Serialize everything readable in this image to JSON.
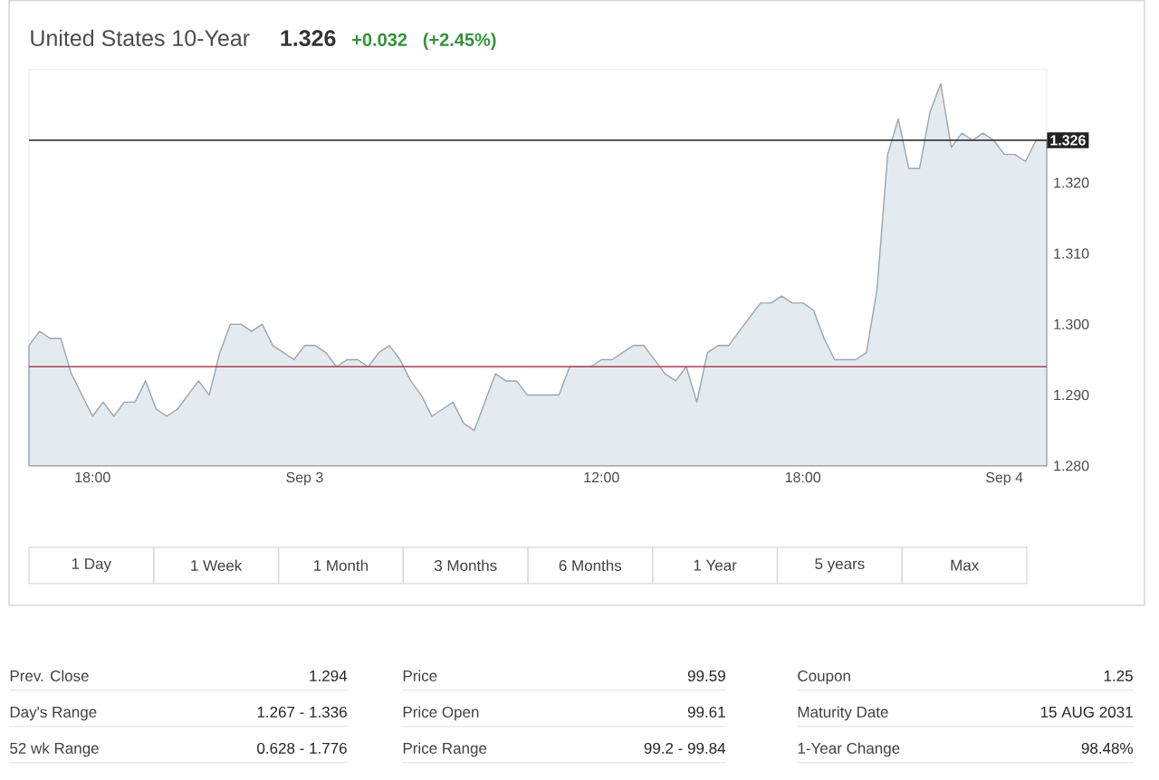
{
  "chart_data": {
    "type": "area",
    "title": "United States 10-Year",
    "annotations": [
      "1.326",
      "+0.032",
      "(+2.45%)",
      "1 Day",
      "1 Week",
      "1 Month",
      "3 Months",
      "6 Months",
      "1 Year",
      "5 years",
      "Max",
      "Prev. Close",
      "1.294",
      "Price",
      "99.59",
      "Coupon",
      "1.25",
      "Day's Range",
      "1.267 - 1.336",
      "Price Open",
      "99.61",
      "Maturity Date",
      "15 AUG 2031",
      "52 wk Range",
      "0.628 - 1.776",
      "Price Range",
      "99.2 - 99.84",
      "1-Year Change",
      "98.48%"
    ],
    "categories": [
      null,
      null,
      null,
      null,
      null,
      null,
      "18:00",
      null,
      null,
      null,
      null,
      null,
      null,
      null,
      null,
      null,
      null,
      null,
      null,
      null,
      null,
      null,
      null,
      null,
      null,
      null,
      "Sep 3",
      null,
      null,
      null,
      null,
      null,
      null,
      null,
      null,
      null,
      null,
      null,
      null,
      null,
      null,
      null,
      null,
      null,
      null,
      null,
      null,
      null,
      null,
      null,
      null,
      null,
      null,
      null,
      "12:00",
      null,
      null,
      null,
      null,
      null,
      null,
      null,
      null,
      null,
      null,
      null,
      null,
      null,
      null,
      null,
      null,
      null,
      null,
      "18:00",
      null,
      null,
      null,
      null,
      null,
      null,
      null,
      null,
      null,
      null,
      null,
      null,
      null,
      null,
      null,
      null,
      null,
      null,
      "Sep 4",
      null,
      null,
      null,
      null
    ],
    "series": [
      {
        "color": "#9aa5ad",
        "values": [
          1.297,
          1.299,
          1.298,
          1.298,
          1.293,
          1.29,
          1.287,
          1.289,
          1.287,
          1.289,
          1.289,
          1.292,
          1.288,
          1.287,
          1.288,
          1.29,
          1.292,
          1.29,
          1.296,
          1.3,
          1.3,
          1.299,
          1.3,
          1.297,
          1.296,
          1.295,
          1.297,
          1.297,
          1.296,
          1.294,
          1.295,
          1.295,
          1.294,
          1.296,
          1.297,
          1.295,
          1.292,
          1.29,
          1.287,
          1.288,
          1.289,
          1.286,
          1.285,
          1.289,
          1.293,
          1.292,
          1.292,
          1.29,
          1.29,
          1.29,
          1.29,
          1.294,
          1.294,
          1.294,
          1.295,
          1.295,
          1.296,
          1.297,
          1.297,
          1.295,
          1.293,
          1.292,
          1.294,
          1.289,
          1.296,
          1.297,
          1.297,
          1.299,
          1.301,
          1.303,
          1.303,
          1.304,
          1.303,
          1.303,
          1.302,
          1.298,
          1.295,
          1.295,
          1.295,
          1.296,
          1.305,
          1.324,
          1.329,
          1.322,
          1.322,
          1.33,
          1.334,
          1.325,
          1.327,
          1.326,
          1.327,
          1.326,
          1.324,
          1.324,
          1.323,
          1.326,
          1.326
        ]
      }
    ],
    "ylim": [
      1.28,
      1.336
    ],
    "yticks": [
      {
        "value": 1.28,
        "label": "1.280"
      },
      {
        "value": 1.29,
        "label": "1.290"
      },
      {
        "value": 1.3,
        "label": "1.300"
      },
      {
        "value": 1.31,
        "label": "1.310"
      },
      {
        "value": 1.32,
        "label": "1.320"
      }
    ],
    "ref_lines": [
      {
        "axis": "y",
        "value": 1.326,
        "label": "1.326",
        "color": "#222222"
      },
      {
        "axis": "y",
        "value": 1.294,
        "color": "#b0404e"
      }
    ]
  }
}
